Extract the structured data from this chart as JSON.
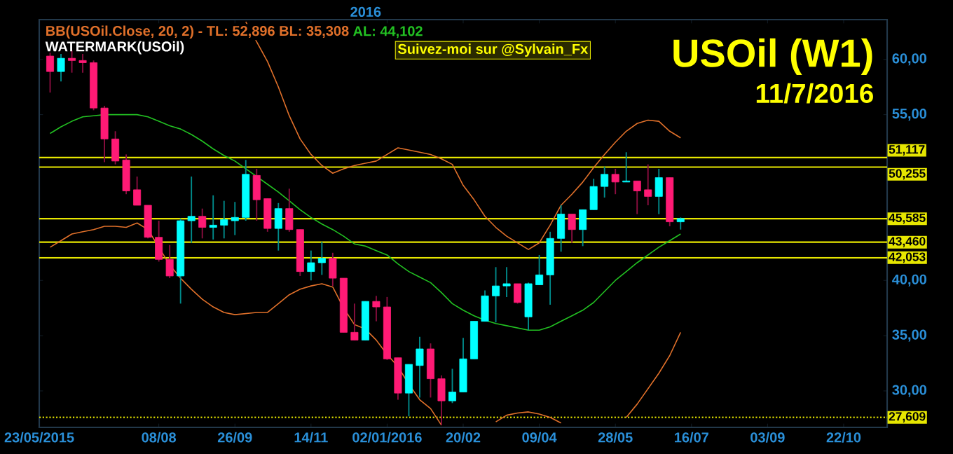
{
  "chart_data": {
    "type": "candlestick",
    "title": "USOil (W1)",
    "subtitle": "11/7/2016",
    "annotations": [
      "BB(USOil.Close, 20, 2) -  TL: 52,896  BL: 35,308",
      "AL: 44,102",
      "WATERMARK(USOil)",
      "Suivez-moi sur @Sylvain_Fx",
      "2016"
    ],
    "x": [
      "2015-05-30",
      "2015-06-06",
      "2015-06-13",
      "2015-06-20",
      "2015-06-27",
      "2015-07-04",
      "2015-07-11",
      "2015-07-18",
      "2015-07-25",
      "2015-08-01",
      "2015-08-08",
      "2015-08-15",
      "2015-08-22",
      "2015-08-29",
      "2015-09-05",
      "2015-09-12",
      "2015-09-19",
      "2015-09-26",
      "2015-10-03",
      "2015-10-10",
      "2015-10-17",
      "2015-10-24",
      "2015-10-31",
      "2015-11-07",
      "2015-11-14",
      "2015-11-21",
      "2015-11-28",
      "2015-12-05",
      "2015-12-12",
      "2015-12-19",
      "2015-12-26",
      "2016-01-02",
      "2016-01-09",
      "2016-01-16",
      "2016-01-23",
      "2016-01-30",
      "2016-02-06",
      "2016-02-13",
      "2016-02-20",
      "2016-02-27",
      "2016-03-05",
      "2016-03-12",
      "2016-03-19",
      "2016-03-26",
      "2016-04-02",
      "2016-04-09",
      "2016-04-16",
      "2016-04-23",
      "2016-04-30",
      "2016-05-07",
      "2016-05-14",
      "2016-05-21",
      "2016-05-28",
      "2016-06-04",
      "2016-06-11",
      "2016-06-18",
      "2016-06-25",
      "2016-07-02",
      "2016-07-09"
    ],
    "ohlc": [
      [
        60.3,
        60.6,
        57.0,
        58.9
      ],
      [
        58.9,
        60.5,
        58.0,
        60.1
      ],
      [
        60.1,
        60.8,
        58.8,
        59.9
      ],
      [
        59.9,
        60.5,
        58.8,
        59.7
      ],
      [
        59.7,
        59.9,
        55.4,
        55.6
      ],
      [
        55.6,
        55.8,
        50.7,
        52.8
      ],
      [
        52.8,
        53.5,
        50.5,
        50.8
      ],
      [
        50.9,
        51.4,
        47.8,
        48.1
      ],
      [
        48.2,
        49.4,
        46.8,
        46.8
      ],
      [
        46.8,
        46.8,
        43.8,
        43.9
      ],
      [
        43.9,
        45.4,
        41.7,
        41.9
      ],
      [
        41.9,
        43.2,
        40.2,
        40.4
      ],
      [
        40.4,
        45.6,
        37.9,
        45.4
      ],
      [
        45.4,
        49.4,
        43.4,
        45.8
      ],
      [
        45.8,
        46.5,
        43.8,
        44.8
      ],
      [
        44.8,
        47.7,
        43.7,
        45.0
      ],
      [
        45.0,
        47.2,
        43.8,
        45.5
      ],
      [
        45.4,
        47.1,
        44.1,
        45.7
      ],
      [
        45.7,
        50.9,
        45.4,
        49.6
      ],
      [
        49.5,
        50.1,
        45.4,
        47.3
      ],
      [
        47.4,
        47.4,
        44.4,
        44.7
      ],
      [
        44.7,
        47.0,
        42.7,
        46.5
      ],
      [
        46.5,
        48.3,
        44.4,
        44.6
      ],
      [
        44.6,
        44.6,
        40.4,
        40.8
      ],
      [
        40.8,
        42.7,
        40.0,
        41.6
      ],
      [
        41.6,
        43.5,
        40.5,
        42.0
      ],
      [
        42.0,
        42.5,
        39.5,
        40.2
      ],
      [
        40.2,
        40.2,
        35.3,
        35.3
      ],
      [
        35.3,
        37.9,
        34.6,
        34.6
      ],
      [
        34.6,
        38.1,
        34.6,
        38.1
      ],
      [
        38.1,
        38.6,
        36.3,
        37.6
      ],
      [
        37.6,
        38.5,
        32.8,
        32.9
      ],
      [
        33.0,
        33.0,
        29.2,
        29.8
      ],
      [
        29.8,
        32.4,
        27.7,
        32.4
      ],
      [
        32.3,
        34.9,
        29.4,
        33.8
      ],
      [
        33.8,
        34.3,
        29.4,
        31.1
      ],
      [
        31.1,
        31.4,
        26.9,
        29.1
      ],
      [
        29.1,
        32.0,
        28.9,
        29.9
      ],
      [
        29.9,
        34.8,
        29.9,
        32.9
      ],
      [
        32.9,
        36.3,
        32.9,
        36.3
      ],
      [
        36.3,
        39.1,
        36.3,
        38.6
      ],
      [
        38.6,
        41.2,
        36.2,
        39.5
      ],
      [
        39.5,
        41.2,
        38.5,
        39.7
      ],
      [
        39.7,
        39.7,
        37.9,
        38.0
      ],
      [
        36.7,
        39.8,
        35.5,
        39.7
      ],
      [
        39.6,
        42.3,
        39.6,
        40.5
      ],
      [
        40.5,
        44.4,
        37.8,
        43.8
      ],
      [
        43.8,
        46.8,
        42.6,
        46.0
      ],
      [
        46.0,
        46.0,
        43.4,
        44.6
      ],
      [
        44.6,
        46.4,
        43.1,
        46.4
      ],
      [
        46.4,
        49.2,
        46.4,
        48.5
      ],
      [
        48.5,
        50.3,
        47.5,
        49.6
      ],
      [
        49.6,
        50.1,
        47.8,
        48.9
      ],
      [
        48.9,
        51.6,
        48.9,
        49.0
      ],
      [
        49.0,
        49.0,
        46.0,
        48.1
      ],
      [
        48.2,
        50.5,
        46.8,
        47.6
      ],
      [
        47.6,
        50.1,
        46.0,
        49.3
      ],
      [
        49.3,
        49.3,
        44.9,
        45.3
      ],
      [
        45.3,
        45.7,
        44.6,
        45.6
      ]
    ],
    "colors": [
      "#ff1a75",
      "#00ffff",
      "#ff1a75",
      "#ff1a75",
      "#ff1a75",
      "#ff1a75",
      "#ff1a75",
      "#ff1a75",
      "#ff1a75",
      "#ff1a75",
      "#ff1a75",
      "#ff1a75",
      "#00ffff",
      "#00ffff",
      "#ff1a75",
      "#00ffff",
      "#00ffff",
      "#00ffff",
      "#00ffff",
      "#ff1a75",
      "#ff1a75",
      "#00ffff",
      "#ff1a75",
      "#ff1a75",
      "#00ffff",
      "#00ffff",
      "#ff1a75",
      "#ff1a75",
      "#ff1a75",
      "#00ffff",
      "#ff1a75",
      "#ff1a75",
      "#ff1a75",
      "#00ffff",
      "#00ffff",
      "#ff1a75",
      "#ff1a75",
      "#00ffff",
      "#00ffff",
      "#00ffff",
      "#00ffff",
      "#00ffff",
      "#00ffff",
      "#ff1a75",
      "#00ffff",
      "#00ffff",
      "#00ffff",
      "#00ffff",
      "#ff1a75",
      "#00ffff",
      "#00ffff",
      "#00ffff",
      "#ff1a75",
      "#00ffff",
      "#ff1a75",
      "#ff1a75",
      "#00ffff",
      "#ff1a75",
      "#00ffff"
    ],
    "series": [
      {
        "type": "line",
        "color": "#e0702a",
        "values": [
          null,
          null,
          null,
          null,
          null,
          null,
          null,
          null,
          null,
          null,
          null,
          null,
          null,
          null,
          null,
          null,
          null,
          null,
          63.4,
          61.6,
          59.8,
          57.5,
          54.9,
          52.8,
          51.4,
          50.4,
          49.7,
          50.1,
          50.4,
          50.6,
          50.8,
          51.4,
          52.0,
          51.8,
          51.6,
          51.4,
          51.0,
          50.5,
          48.6,
          47.3,
          45.8,
          44.8,
          44.0,
          43.4,
          42.8,
          43.4,
          45.0,
          46.8,
          47.8,
          48.9,
          50.2,
          51.4,
          52.5,
          53.5,
          54.2,
          54.5,
          54.4,
          53.5,
          52.9
        ]
      },
      {
        "type": "line",
        "color": "#22c022",
        "values": [
          53.3,
          53.9,
          54.4,
          54.8,
          54.9,
          55.0,
          55.0,
          55.0,
          55.0,
          54.8,
          54.4,
          54.0,
          53.7,
          53.2,
          52.6,
          51.9,
          51.3,
          50.8,
          50.1,
          49.4,
          48.7,
          48.0,
          47.2,
          46.4,
          45.7,
          45.1,
          44.6,
          44.0,
          43.3,
          43.1,
          42.7,
          42.3,
          41.5,
          40.8,
          40.3,
          39.8,
          38.9,
          37.9,
          37.3,
          36.8,
          36.4,
          36.1,
          35.9,
          35.7,
          35.5,
          35.5,
          35.8,
          36.3,
          36.8,
          37.3,
          38.0,
          39.0,
          40.0,
          40.8,
          41.6,
          42.3,
          43.0,
          43.6,
          44.2
        ]
      },
      {
        "type": "line",
        "color": "#e0702a",
        "values": [
          43.0,
          43.6,
          44.2,
          44.4,
          44.6,
          44.9,
          44.9,
          44.8,
          45.2,
          44.6,
          43.0,
          41.4,
          40.2,
          39.2,
          38.3,
          37.6,
          37.1,
          36.9,
          37.0,
          37.1,
          37.1,
          37.9,
          38.7,
          39.2,
          39.5,
          39.7,
          39.4,
          37.5,
          36.0,
          35.6,
          34.6,
          33.3,
          32.2,
          30.6,
          29.2,
          28.4,
          26.9,
          null,
          null,
          null,
          null,
          27.2,
          27.8,
          28.0,
          28.1,
          27.9,
          27.6,
          27.1,
          null,
          null,
          null,
          null,
          null,
          27.6,
          28.8,
          30.2,
          31.6,
          33.2,
          35.3
        ]
      }
    ],
    "xlim": [
      "2015-05-23",
      "2016-11-19"
    ],
    "xticks": [
      {
        "value": "2015-05-23",
        "label": "23/05/2015"
      },
      {
        "value": "2015-08-08",
        "label": "08/08"
      },
      {
        "value": "2015-09-26",
        "label": "26/09"
      },
      {
        "value": "2015-11-14",
        "label": "14/11"
      },
      {
        "value": "2016-01-02",
        "label": "02/01/2016"
      },
      {
        "value": "2016-02-20",
        "label": "20/02"
      },
      {
        "value": "2016-04-09",
        "label": "09/04"
      },
      {
        "value": "2016-05-28",
        "label": "28/05"
      },
      {
        "value": "2016-07-16",
        "label": "16/07"
      },
      {
        "value": "2016-09-03",
        "label": "03/09"
      },
      {
        "value": "2016-10-22",
        "label": "22/10"
      }
    ],
    "ylim": [
      26.7,
      63.6
    ],
    "yticks": [
      {
        "value": 30,
        "label": "30,00"
      },
      {
        "value": 35,
        "label": "35,00"
      },
      {
        "value": 40,
        "label": "40,00"
      },
      {
        "value": 55,
        "label": "55,00"
      },
      {
        "value": 60,
        "label": "60,00"
      }
    ],
    "ref_lines": [
      {
        "axis": "y",
        "value": 51.117,
        "label": "51,117",
        "color": "#e6e600",
        "line_style": "solid"
      },
      {
        "axis": "y",
        "value": 50.255,
        "label": "50,255",
        "color": "#e6e600",
        "line_style": "solid"
      },
      {
        "axis": "y",
        "value": 45.585,
        "label": "45,585",
        "color": "#e6e600",
        "line_style": "solid"
      },
      {
        "axis": "y",
        "value": 43.46,
        "label": "43,460",
        "color": "#e6e600",
        "line_style": "solid"
      },
      {
        "axis": "y",
        "value": 42.053,
        "label": "42,053",
        "color": "#e6e600",
        "line_style": "solid"
      },
      {
        "axis": "y",
        "value": 27.609,
        "label": "27,609",
        "color": "#e6e600",
        "line_style": "dotted"
      }
    ],
    "marker": "none"
  }
}
